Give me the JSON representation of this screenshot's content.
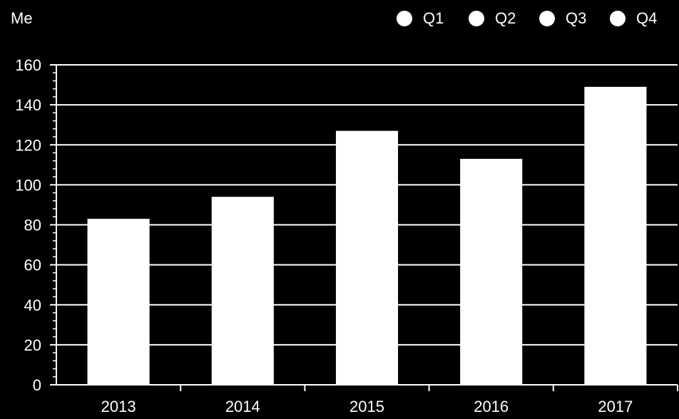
{
  "chart_data": {
    "type": "bar",
    "unit_label": "Me",
    "categories": [
      "2013",
      "2014",
      "2015",
      "2016",
      "2017"
    ],
    "values": [
      83,
      94,
      127,
      113,
      149
    ],
    "ylim": [
      0,
      160
    ],
    "yticks": [
      0,
      20,
      40,
      60,
      80,
      100,
      120,
      140,
      160
    ],
    "grid": true,
    "legend": {
      "placement": "top-right",
      "entries": [
        "Q1",
        "Q2",
        "Q3",
        "Q4"
      ]
    },
    "colors": {
      "background": "#000000",
      "bar": "#ffffff",
      "grid": "#ffffff",
      "text": "#ffffff"
    }
  }
}
